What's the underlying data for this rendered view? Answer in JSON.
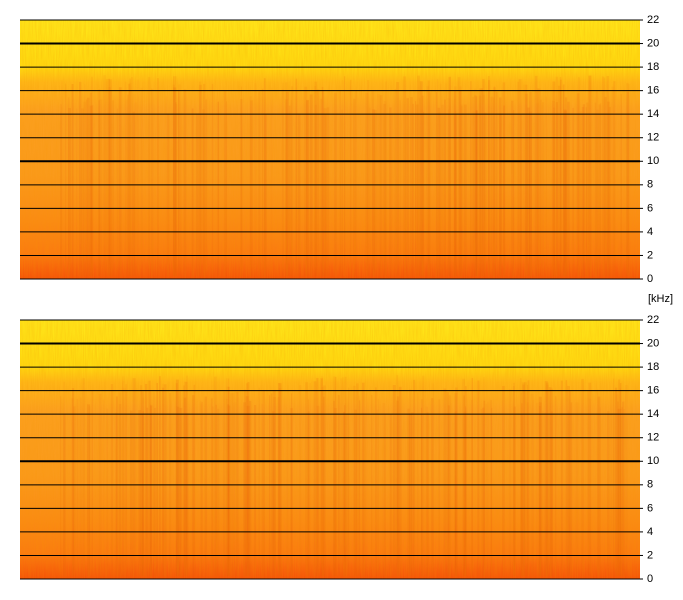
{
  "chart_data": [
    {
      "type": "spectrogram",
      "ylabel": "[kHz]",
      "ylim": [
        0,
        22
      ],
      "yticks": [
        0,
        2,
        4,
        6,
        8,
        10,
        12,
        14,
        16,
        18,
        20,
        22
      ],
      "grid": true,
      "grid_major": [
        10,
        20
      ]
    },
    {
      "type": "spectrogram",
      "ylim": [
        0,
        22
      ],
      "yticks": [
        0,
        2,
        4,
        6,
        8,
        10,
        12,
        14,
        16,
        18,
        20,
        22
      ],
      "grid": true,
      "grid_major": [
        10,
        20
      ]
    }
  ]
}
